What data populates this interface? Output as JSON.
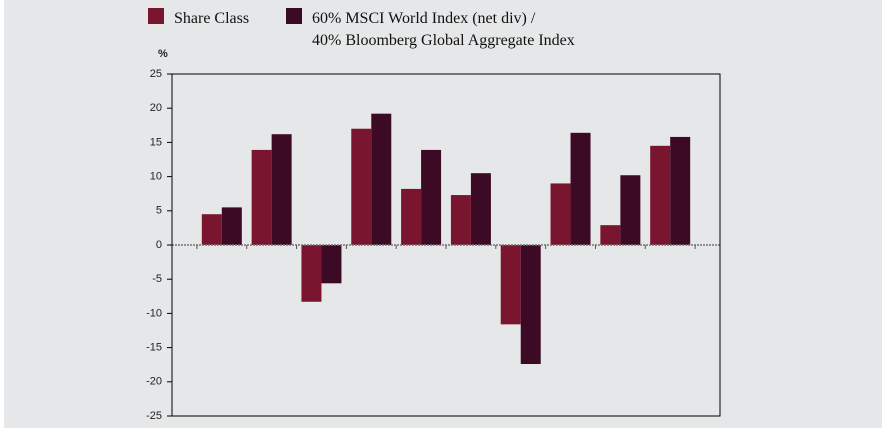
{
  "chart_data": {
    "type": "bar",
    "y_label": "%",
    "categories": [
      null,
      null,
      null,
      null,
      null,
      null,
      null,
      null,
      null,
      null
    ],
    "series": [
      {
        "name": "Share Class",
        "color": "#7a1530",
        "values": [
          4.5,
          13.9,
          -8.3,
          17.0,
          8.2,
          7.3,
          -11.6,
          9.0,
          2.9,
          14.5
        ]
      },
      {
        "name": "60% MSCI World Index (net div) /\n40% Bloomberg Global Aggregate Index",
        "color": "#3d0a26",
        "values": [
          5.5,
          16.2,
          -5.6,
          19.2,
          13.9,
          10.5,
          -17.4,
          16.4,
          10.2,
          15.8
        ]
      }
    ],
    "ylim": [
      -25,
      25
    ],
    "yticks": [
      -25,
      -20,
      -15,
      -10,
      -5,
      0,
      5,
      10,
      15,
      20,
      25
    ]
  }
}
